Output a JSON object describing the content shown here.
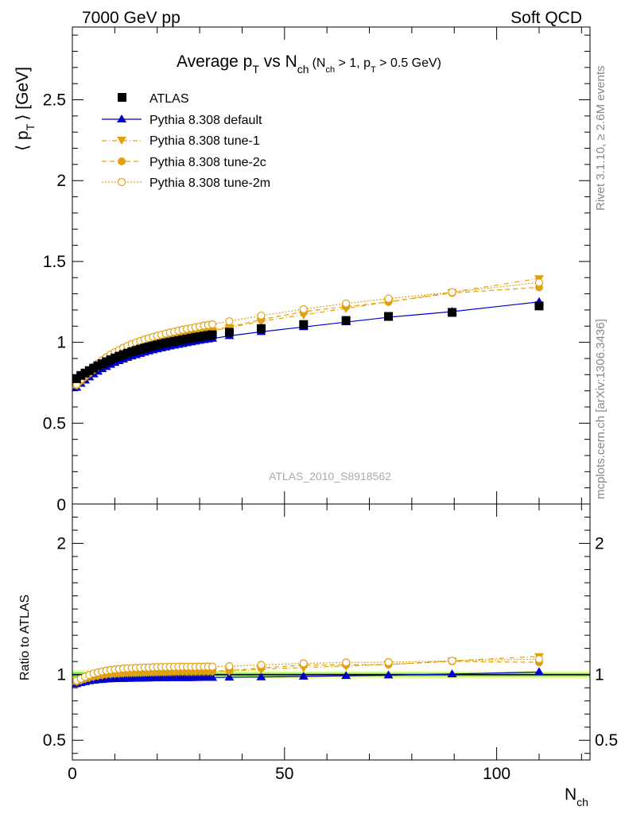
{
  "header": {
    "left": "7000 GeV pp",
    "right": "Soft QCD"
  },
  "side_labels": {
    "rivet": "Rivet 3.1.10, ≥ 2.6M events",
    "mcplots": "mcplots.cern.ch [arXiv:1306.3436]"
  },
  "watermark": "ATLAS_2010_S8918562",
  "colors": {
    "data": "#000000",
    "default": "#0000cc",
    "tune": "#e0a010",
    "band_inner": "#66dd66",
    "band_outer": "#eeff88"
  },
  "chart_data": {
    "type": "line",
    "title": "Average p_T vs N_ch (N_ch > 1, p_T > 0.5 GeV)",
    "title_parts": {
      "main_a": "Average p",
      "main_sub_t": "T",
      "main_b": " vs N",
      "main_sub_ch": "ch",
      "paren_a": "(N",
      "paren_sub_ch": "ch",
      "paren_b": " > 1, p",
      "paren_sub_t": "T",
      "paren_c": " > 0.5 GeV)"
    },
    "ylabel": "⟨ p_T ⟩ [GeV]",
    "ylabel_parts": {
      "open": "⟨ p",
      "sub": "T",
      "close": "⟩ [GeV]"
    },
    "xlabel": "N_ch",
    "xlabel_parts": {
      "main": "N",
      "sub": "ch"
    },
    "ratio_ylabel": "Ratio to ATLAS",
    "xlim": [
      0,
      122
    ],
    "ylim": [
      0,
      2.95
    ],
    "ratio_ylim": [
      0.35,
      2.3
    ],
    "x_ticks": [
      0,
      50,
      100
    ],
    "y_ticks": [
      0.5,
      1,
      1.5,
      2,
      2.5
    ],
    "y_tick_labels": [
      "0.5",
      "1",
      "1.5",
      "2",
      "2.5"
    ],
    "y_zero_label": "0",
    "ratio_ticks": [
      0.5,
      1,
      2
    ],
    "ratio_tick_labels": [
      "0.5",
      "1",
      "2"
    ],
    "grid": false,
    "legend_position": "top-left",
    "x": [
      1,
      2,
      3,
      4,
      5,
      6,
      7,
      8,
      9,
      10,
      11,
      12,
      13,
      14,
      15,
      16,
      17,
      18,
      19,
      20,
      21,
      22,
      23,
      24,
      25,
      26,
      27,
      28,
      29,
      30,
      31,
      32,
      33,
      37,
      44.5,
      54.5,
      64.5,
      74.5,
      89.5,
      110
    ],
    "series": [
      {
        "name": "ATLAS",
        "key": "data",
        "values": [
          0.775,
          0.795,
          0.81,
          0.825,
          0.84,
          0.855,
          0.868,
          0.88,
          0.892,
          0.903,
          0.914,
          0.924,
          0.933,
          0.942,
          0.95,
          0.958,
          0.965,
          0.972,
          0.978,
          0.984,
          0.99,
          0.996,
          1.001,
          1.006,
          1.011,
          1.016,
          1.021,
          1.026,
          1.031,
          1.035,
          1.039,
          1.043,
          1.047,
          1.062,
          1.085,
          1.11,
          1.135,
          1.16,
          1.185,
          1.225
        ]
      },
      {
        "name": "Pythia 8.308 default",
        "key": "default",
        "values": [
          0.72,
          0.745,
          0.765,
          0.785,
          0.803,
          0.82,
          0.835,
          0.849,
          0.862,
          0.874,
          0.885,
          0.895,
          0.905,
          0.914,
          0.922,
          0.93,
          0.938,
          0.945,
          0.952,
          0.958,
          0.964,
          0.97,
          0.976,
          0.981,
          0.986,
          0.991,
          0.996,
          1.001,
          1.006,
          1.011,
          1.015,
          1.019,
          1.023,
          1.04,
          1.065,
          1.095,
          1.125,
          1.155,
          1.19,
          1.25
        ]
      },
      {
        "name": "Pythia 8.308 tune-1",
        "key": "tune1",
        "values": [
          0.735,
          0.76,
          0.783,
          0.805,
          0.826,
          0.846,
          0.864,
          0.88,
          0.895,
          0.909,
          0.922,
          0.934,
          0.945,
          0.955,
          0.964,
          0.973,
          0.981,
          0.989,
          0.996,
          1.003,
          1.01,
          1.016,
          1.022,
          1.028,
          1.034,
          1.039,
          1.044,
          1.049,
          1.054,
          1.059,
          1.064,
          1.068,
          1.072,
          1.09,
          1.13,
          1.17,
          1.21,
          1.25,
          1.31,
          1.395
        ]
      },
      {
        "name": "Pythia 8.308 tune-2c",
        "key": "tune2c",
        "values": [
          0.735,
          0.762,
          0.786,
          0.808,
          0.829,
          0.849,
          0.867,
          0.883,
          0.898,
          0.912,
          0.925,
          0.937,
          0.948,
          0.958,
          0.967,
          0.976,
          0.984,
          0.992,
          0.999,
          1.006,
          1.013,
          1.019,
          1.025,
          1.031,
          1.037,
          1.042,
          1.047,
          1.052,
          1.057,
          1.062,
          1.067,
          1.071,
          1.075,
          1.095,
          1.14,
          1.19,
          1.22,
          1.25,
          1.305,
          1.34
        ]
      },
      {
        "name": "Pythia 8.308 tune-2m",
        "key": "tune2m",
        "values": [
          0.74,
          0.77,
          0.797,
          0.823,
          0.847,
          0.869,
          0.889,
          0.907,
          0.924,
          0.939,
          0.953,
          0.966,
          0.978,
          0.989,
          0.999,
          1.008,
          1.017,
          1.025,
          1.033,
          1.04,
          1.047,
          1.054,
          1.06,
          1.066,
          1.072,
          1.078,
          1.083,
          1.088,
          1.093,
          1.098,
          1.103,
          1.107,
          1.111,
          1.13,
          1.165,
          1.205,
          1.24,
          1.27,
          1.31,
          1.37
        ]
      }
    ]
  }
}
